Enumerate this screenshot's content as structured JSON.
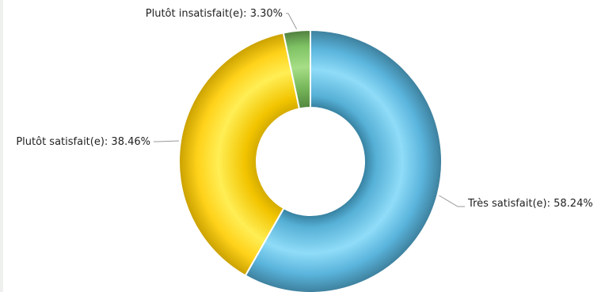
{
  "chart_data": {
    "type": "pie",
    "donut": true,
    "slices": [
      {
        "label": "Très satisfait(e)",
        "value": 58.24,
        "value_label": "58.24%",
        "color": "#5ab4dc"
      },
      {
        "label": "Plutôt satisfait(e)",
        "value": 38.46,
        "value_label": "38.46%",
        "color": "#ffd21a"
      },
      {
        "label": "Plutôt insatisfait(e)",
        "value": 3.3,
        "value_label": "3.30%",
        "color": "#7ec264"
      }
    ]
  }
}
